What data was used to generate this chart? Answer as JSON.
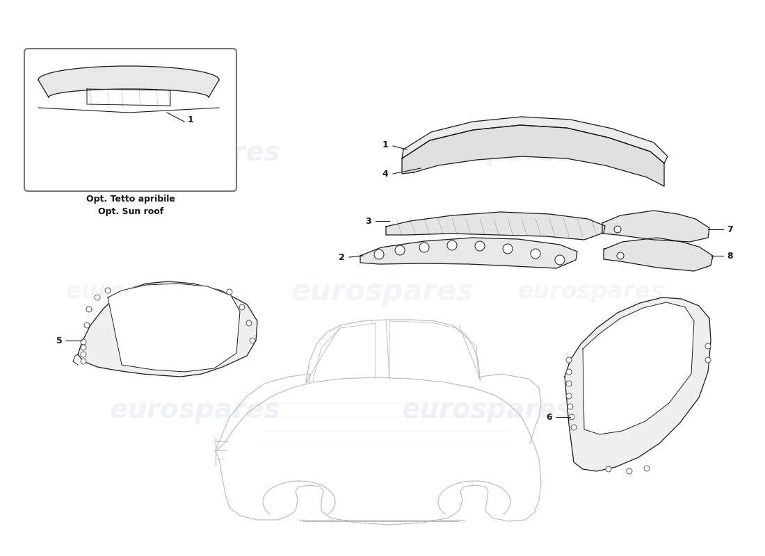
{
  "background_color": "#ffffff",
  "line_color": "#1a1a1a",
  "light_line_color": "#cccccc",
  "fill_color": "#f0f0f0",
  "watermark_text": "eurospares",
  "watermark_color": "#c8d4e8",
  "watermark_alpha": 0.35,
  "watermark_fontsize": 26,
  "inset_caption_line1": "Opt. Tetto apribile",
  "inset_caption_line2": "Opt. Sun roof",
  "page_bg": "#f5f5f5"
}
